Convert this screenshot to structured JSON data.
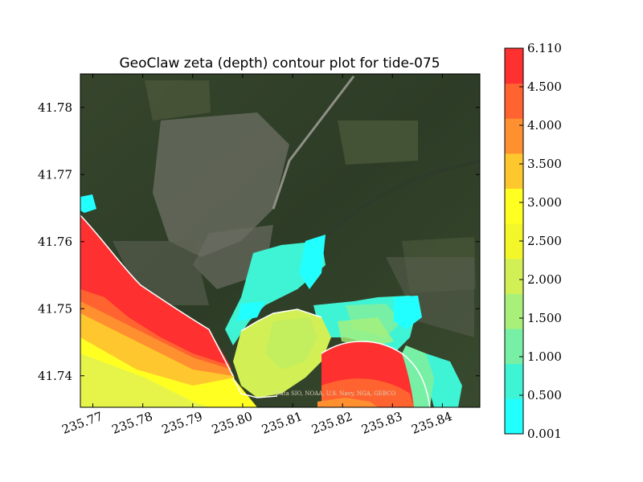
{
  "chart_data": {
    "type": "heatmap",
    "title": "GeoClaw zeta (depth) contour plot for tide-075",
    "xlabel": "",
    "ylabel": "",
    "xlim": [
      235.7675,
      235.8475
    ],
    "ylim": [
      41.7353,
      41.785
    ],
    "x_ticks": [
      235.77,
      235.78,
      235.79,
      235.8,
      235.81,
      235.82,
      235.83,
      235.84
    ],
    "x_tick_labels": [
      "235.77",
      "235.78",
      "235.79",
      "235.80",
      "235.81",
      "235.82",
      "235.83",
      "235.84"
    ],
    "y_ticks": [
      41.74,
      41.75,
      41.76,
      41.77,
      41.78
    ],
    "y_tick_labels": [
      "41.74",
      "41.75",
      "41.76",
      "41.77",
      "41.78"
    ],
    "colorbar": {
      "levels": [
        0.001,
        0.5,
        1.0,
        1.5,
        2.0,
        2.5,
        3.0,
        3.5,
        4.0,
        4.5,
        6.11
      ],
      "labels": [
        "0.001",
        "0.500",
        "1.000",
        "1.500",
        "2.000",
        "2.500",
        "3.000",
        "3.500",
        "4.000",
        "4.500",
        "6.110"
      ],
      "colors": [
        "#22ffff",
        "#3ff3d5",
        "#77f0a6",
        "#a8f07a",
        "#d2f055",
        "#f3f729",
        "#ffff22",
        "#ffc72e",
        "#ff9030",
        "#ff6430",
        "#ff3030"
      ]
    },
    "background": "satellite imagery",
    "attribution": "Data SIO, NOAA, U.S. Navy, NGA, GEBCO"
  }
}
